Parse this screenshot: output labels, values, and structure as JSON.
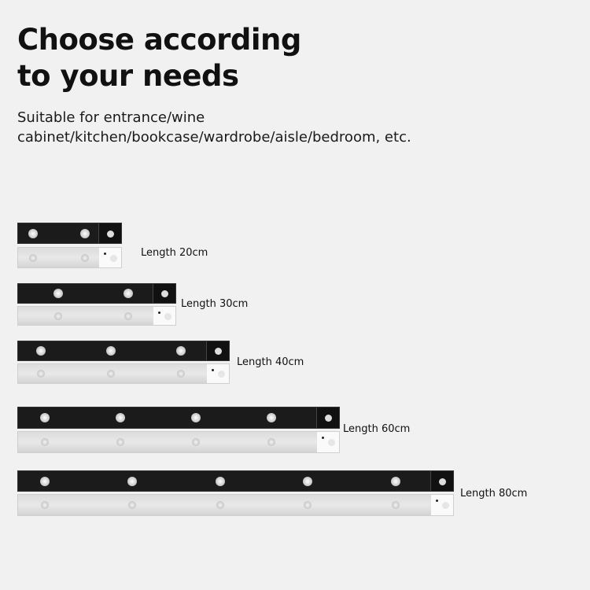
{
  "heading": {
    "line1": "Choose according",
    "line2": "to your needs"
  },
  "subtitle": {
    "line1": "Suitable for entrance/wine",
    "line2": "cabinet/kitchen/bookcase/wardrobe/aisle/bedroom, etc."
  },
  "colors": {
    "background": "#f1f1f1",
    "bar_black": "#1b1b1b",
    "bar_silver": "#dcdcdc"
  },
  "products": [
    {
      "label": "Length 20cm",
      "leds": 2
    },
    {
      "label": "Length 30cm",
      "leds": 2
    },
    {
      "label": "Length 40cm",
      "leds": 3
    },
    {
      "label": "Length 60cm",
      "leds": 4
    },
    {
      "label": "Length 80cm",
      "leds": 5
    }
  ]
}
